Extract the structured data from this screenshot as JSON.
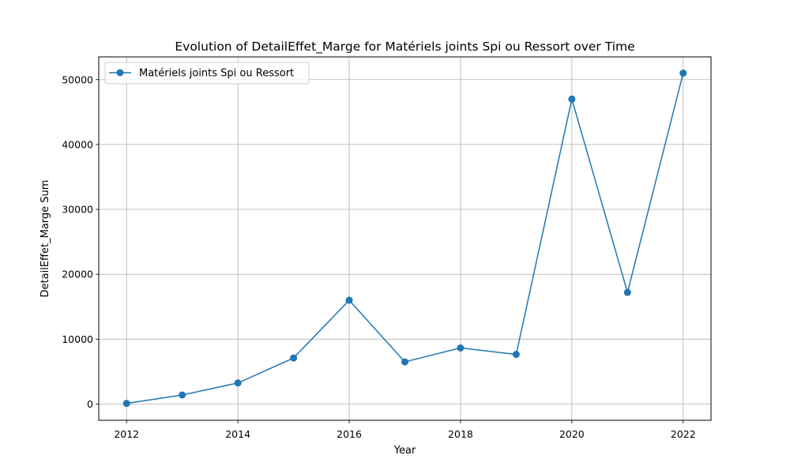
{
  "chart_data": {
    "type": "line",
    "title": "Evolution of DetailEffet_Marge for Matériels joints Spi ou Ressort over Time",
    "xlabel": "Year",
    "ylabel": "DetailEffet_Marge Sum",
    "x": [
      2012,
      2013,
      2014,
      2015,
      2016,
      2017,
      2018,
      2019,
      2020,
      2021,
      2022
    ],
    "series": [
      {
        "name": "Matériels joints Spi ou Ressort",
        "color": "#1f77b4",
        "marker": "circle",
        "values": [
          100,
          1400,
          3250,
          7100,
          16000,
          6500,
          8650,
          7650,
          47000,
          17200,
          51000
        ]
      }
    ],
    "xticks": [
      "2012",
      "2014",
      "2016",
      "2018",
      "2020",
      "2022"
    ],
    "yticks": [
      "0",
      "10000",
      "20000",
      "30000",
      "40000",
      "50000"
    ],
    "xlim": [
      2011.5,
      2022.5
    ],
    "ylim": [
      -2500,
      53500
    ],
    "grid": true,
    "legend_position": "top-left"
  }
}
